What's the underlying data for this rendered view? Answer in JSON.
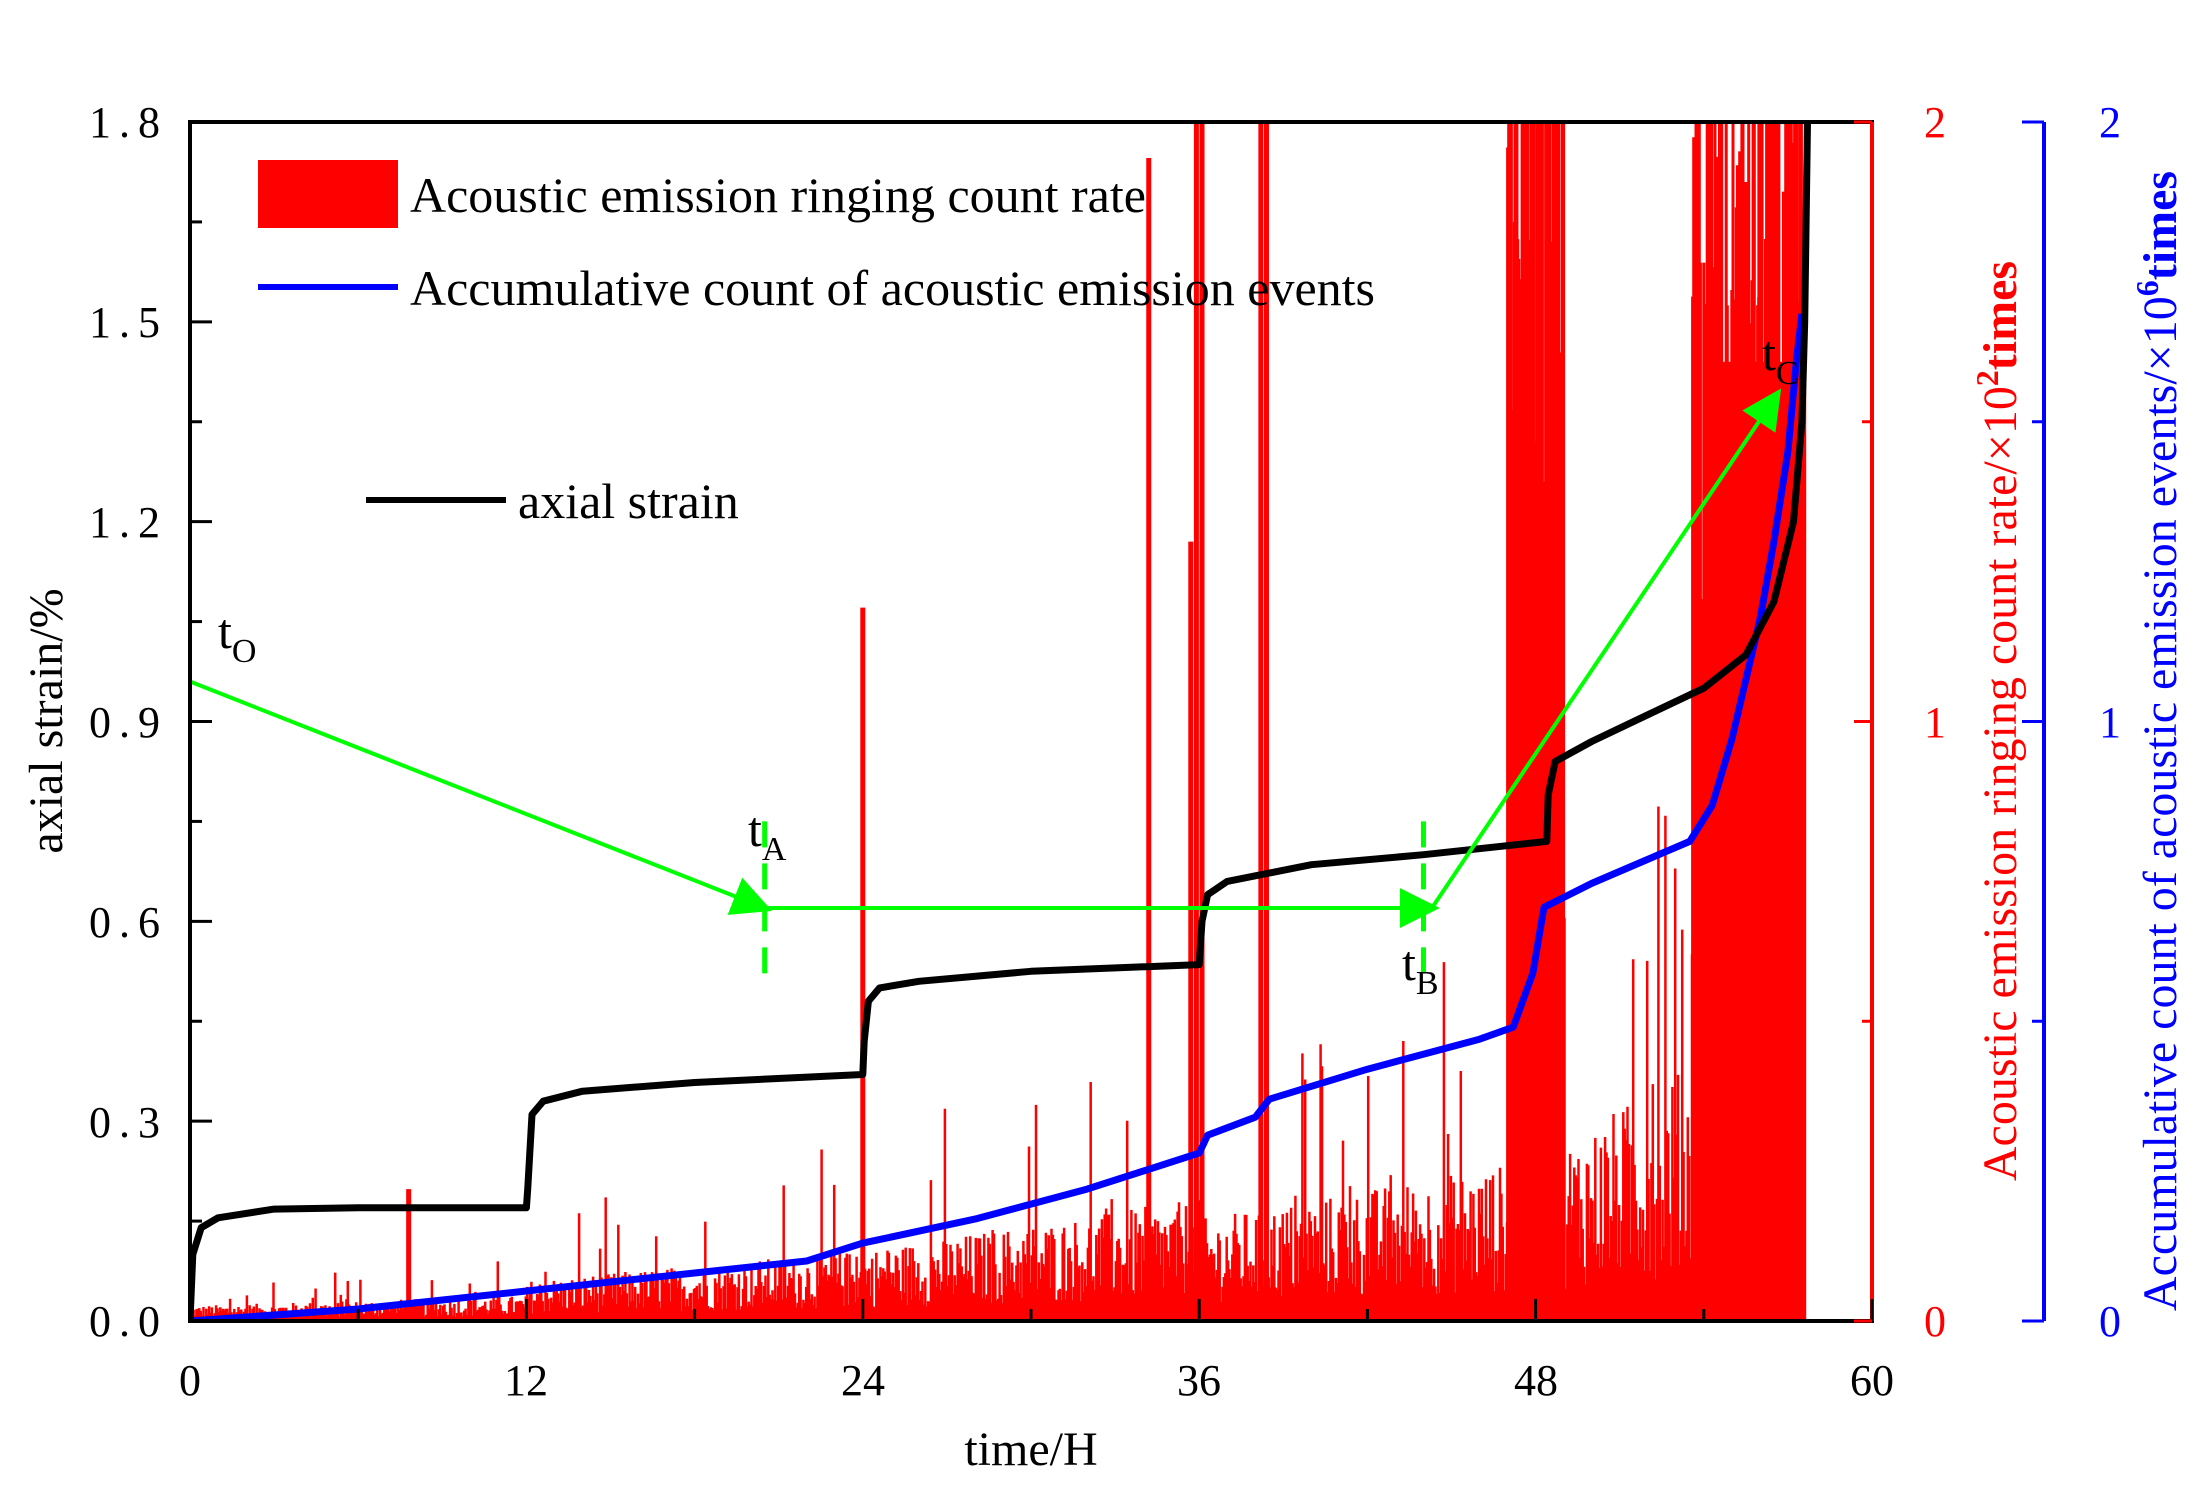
{
  "chart_data": {
    "type": "line",
    "xlabel": "time/H",
    "xlim": [
      0,
      60
    ],
    "x_ticks": [
      "0",
      "12",
      "24",
      "36",
      "48",
      "60"
    ],
    "y_left": {
      "label": "axial strain/%",
      "ylim": [
        0,
        1.8
      ],
      "ticks": [
        "0.0",
        "0.3",
        "0.6",
        "0.9",
        "1.2",
        "1.5",
        "1.8"
      ],
      "color": "#000000"
    },
    "y_right1": {
      "label": "Acoustic emission ringing count rate/×10",
      "exponent": "2",
      "unit": "times",
      "ylim": [
        0,
        2
      ],
      "ticks": [
        "0",
        "1",
        "2"
      ],
      "color": "#ff0000"
    },
    "y_right2": {
      "label": "Accumulative count of acoustic emission events/×10",
      "exponent": "6",
      "unit": "times",
      "ylim": [
        0,
        2
      ],
      "ticks": [
        "0",
        "1",
        "2"
      ],
      "color": "#0000ff"
    },
    "legend": [
      {
        "label": "Acoustic emission ringing count rate",
        "color": "#ff0000",
        "kind": "bar"
      },
      {
        "label": "Accumulative count of acoustic emission events",
        "color": "#0000ff",
        "kind": "line"
      },
      {
        "label": "axial strain",
        "color": "#000000",
        "kind": "line"
      }
    ],
    "series": [
      {
        "name": "axial strain",
        "axis": "left",
        "color": "#000000",
        "points": [
          [
            0,
            0
          ],
          [
            0.1,
            0.1
          ],
          [
            0.4,
            0.14
          ],
          [
            1,
            0.155
          ],
          [
            3,
            0.168
          ],
          [
            6,
            0.17
          ],
          [
            12,
            0.17
          ],
          [
            12.05,
            0.2
          ],
          [
            12.2,
            0.31
          ],
          [
            12.6,
            0.33
          ],
          [
            14,
            0.345
          ],
          [
            18,
            0.358
          ],
          [
            24,
            0.37
          ],
          [
            24.05,
            0.42
          ],
          [
            24.2,
            0.48
          ],
          [
            24.6,
            0.5
          ],
          [
            26,
            0.51
          ],
          [
            30,
            0.525
          ],
          [
            36,
            0.535
          ],
          [
            36.1,
            0.6
          ],
          [
            36.3,
            0.64
          ],
          [
            37,
            0.66
          ],
          [
            40,
            0.685
          ],
          [
            44,
            0.7
          ],
          [
            48.4,
            0.72
          ],
          [
            48.45,
            0.79
          ],
          [
            48.7,
            0.84
          ],
          [
            50,
            0.87
          ],
          [
            52,
            0.91
          ],
          [
            54,
            0.95
          ],
          [
            55.5,
            1.0
          ],
          [
            56.5,
            1.08
          ],
          [
            57.2,
            1.2
          ],
          [
            57.5,
            1.35
          ],
          [
            57.6,
            1.5
          ],
          [
            57.7,
            1.8
          ]
        ]
      },
      {
        "name": "Accumulative count of acoustic emission events",
        "axis": "right2",
        "color": "#0000ff",
        "points": [
          [
            0,
            0
          ],
          [
            6,
            0.02
          ],
          [
            12,
            0.05
          ],
          [
            18,
            0.08
          ],
          [
            22,
            0.1
          ],
          [
            24,
            0.13
          ],
          [
            28,
            0.17
          ],
          [
            32,
            0.22
          ],
          [
            36,
            0.28
          ],
          [
            36.3,
            0.31
          ],
          [
            38,
            0.34
          ],
          [
            38.5,
            0.37
          ],
          [
            42,
            0.42
          ],
          [
            46,
            0.47
          ],
          [
            47.2,
            0.49
          ],
          [
            47.9,
            0.58
          ],
          [
            48.3,
            0.69
          ],
          [
            50,
            0.73
          ],
          [
            52,
            0.77
          ],
          [
            53.5,
            0.8
          ],
          [
            54.3,
            0.86
          ],
          [
            55,
            0.97
          ],
          [
            55.5,
            1.07
          ],
          [
            56,
            1.17
          ],
          [
            56.5,
            1.3
          ],
          [
            57,
            1.45
          ],
          [
            57.3,
            1.6
          ],
          [
            57.5,
            1.68
          ]
        ]
      }
    ],
    "ringing_count_rate": {
      "axis": "right1",
      "color": "#ff0000",
      "spikes": [
        [
          7.8,
          0.22
        ],
        [
          24.0,
          1.19
        ],
        [
          34.2,
          1.94
        ],
        [
          35.7,
          1.3
        ],
        [
          35.9,
          2.0
        ],
        [
          36.1,
          2.0
        ],
        [
          38.2,
          2.0
        ],
        [
          38.4,
          2.0
        ],
        [
          47.1,
          2.0
        ],
        [
          47.3,
          2.0
        ],
        [
          47.6,
          2.0
        ],
        [
          47.9,
          2.0
        ],
        [
          48.2,
          2.0
        ],
        [
          48.4,
          2.0
        ],
        [
          48.6,
          1.8
        ],
        [
          48.8,
          2.0
        ],
        [
          53.7,
          1.5
        ],
        [
          54.5,
          1.4
        ],
        [
          55.2,
          1.6
        ],
        [
          55.5,
          1.9
        ],
        [
          56.0,
          2.0
        ],
        [
          56.6,
          2.0
        ],
        [
          57.0,
          2.0
        ],
        [
          57.3,
          2.0
        ]
      ],
      "dense_bursts": [
        {
          "x_start": 47.0,
          "x_end": 49.0,
          "value": 2.0
        },
        {
          "x_start": 53.6,
          "x_end": 57.6,
          "value": 2.0
        }
      ]
    },
    "annotations": [
      {
        "id": "tO",
        "base": "t",
        "sub": "O"
      },
      {
        "id": "tA",
        "base": "t",
        "sub": "A"
      },
      {
        "id": "tB",
        "base": "t",
        "sub": "B"
      },
      {
        "id": "tC",
        "base": "t",
        "sub": "C"
      }
    ],
    "markers": {
      "tA_x": 20.5,
      "tB_x": 44.0,
      "arrow_color": "#00ff00"
    },
    "arrow_path_points": [
      [
        0,
        0.96
      ],
      [
        20.5,
        0.62
      ],
      [
        44.3,
        0.62
      ],
      [
        56.6,
        1.39
      ]
    ]
  }
}
